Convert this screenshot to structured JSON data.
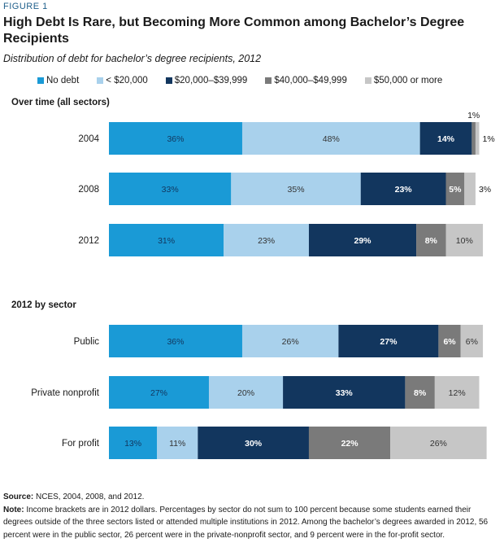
{
  "figure_label": "FIGURE 1",
  "title": "High Debt Is Rare, but Becoming More Common among Bachelor’s Degree Recipients",
  "subtitle": "Distribution of debt for bachelor’s degree recipients, 2012",
  "colors": {
    "no_debt": "#1a9ad6",
    "lt_20000": "#a9d1ec",
    "d20000_39999": "#12365e",
    "d40000_49999": "#7a7a7a",
    "d50000_plus": "#c6c6c6"
  },
  "chart_data": {
    "type": "bar",
    "orientation": "horizontal",
    "stacked": true,
    "legend_position": "top",
    "xlim": [
      0,
      100
    ],
    "series": [
      {
        "name": "No debt",
        "color": "#1a9ad6",
        "label_color": "#12365e",
        "values": [
          36,
          33,
          31,
          36,
          27,
          13
        ]
      },
      {
        "name": "< $20,000",
        "color": "#a9d1ec",
        "label_color": "#333333",
        "values": [
          48,
          35,
          23,
          26,
          20,
          11
        ]
      },
      {
        "name": "$20,000–$39,999",
        "color": "#12365e",
        "label_color": "#ffffff",
        "values": [
          14,
          23,
          29,
          27,
          33,
          30
        ]
      },
      {
        "name": "$40,000–$49,999",
        "color": "#7a7a7a",
        "label_color": "#ffffff",
        "values": [
          1,
          5,
          8,
          6,
          8,
          22
        ]
      },
      {
        "name": "$50,000 or more",
        "color": "#c6c6c6",
        "label_color": "#333333",
        "values": [
          1,
          3,
          10,
          6,
          12,
          26
        ]
      }
    ],
    "groups": [
      {
        "label": "Over time (all sectors)",
        "categories": [
          "2004",
          "2008",
          "2012"
        ]
      },
      {
        "label": "2012 by sector",
        "categories": [
          "Public",
          "Private nonprofit",
          "For profit"
        ]
      }
    ],
    "categories": [
      "2004",
      "2008",
      "2012",
      "Public",
      "Private nonprofit",
      "For profit"
    ],
    "data_labels": [
      [
        "36%",
        "48%",
        "14%",
        "1%",
        "1%"
      ],
      [
        "33%",
        "35%",
        "23%",
        "5%",
        "3%"
      ],
      [
        "31%",
        "23%",
        "29%",
        "8%",
        "10%"
      ],
      [
        "36%",
        "26%",
        "27%",
        "6%",
        "6%"
      ],
      [
        "27%",
        "20%",
        "33%",
        "8%",
        "12%"
      ],
      [
        "13%",
        "11%",
        "30%",
        "22%",
        "26%"
      ]
    ]
  },
  "footnotes": {
    "source_label": "Source:",
    "source_text": " NCES, 2004, 2008, and 2012.",
    "note_label": "Note:",
    "note_text": " Income brackets are in 2012 dollars. Percentages by sector do not sum to 100 percent because some students earned their degrees outside of the three sectors listed or attended multiple institutions in 2012. Among the bachelor’s degrees awarded in 2012, 56 percent were in the public sector, 26 percent were in the private-nonprofit sector, and 9 percent were in the for-profit sector."
  }
}
